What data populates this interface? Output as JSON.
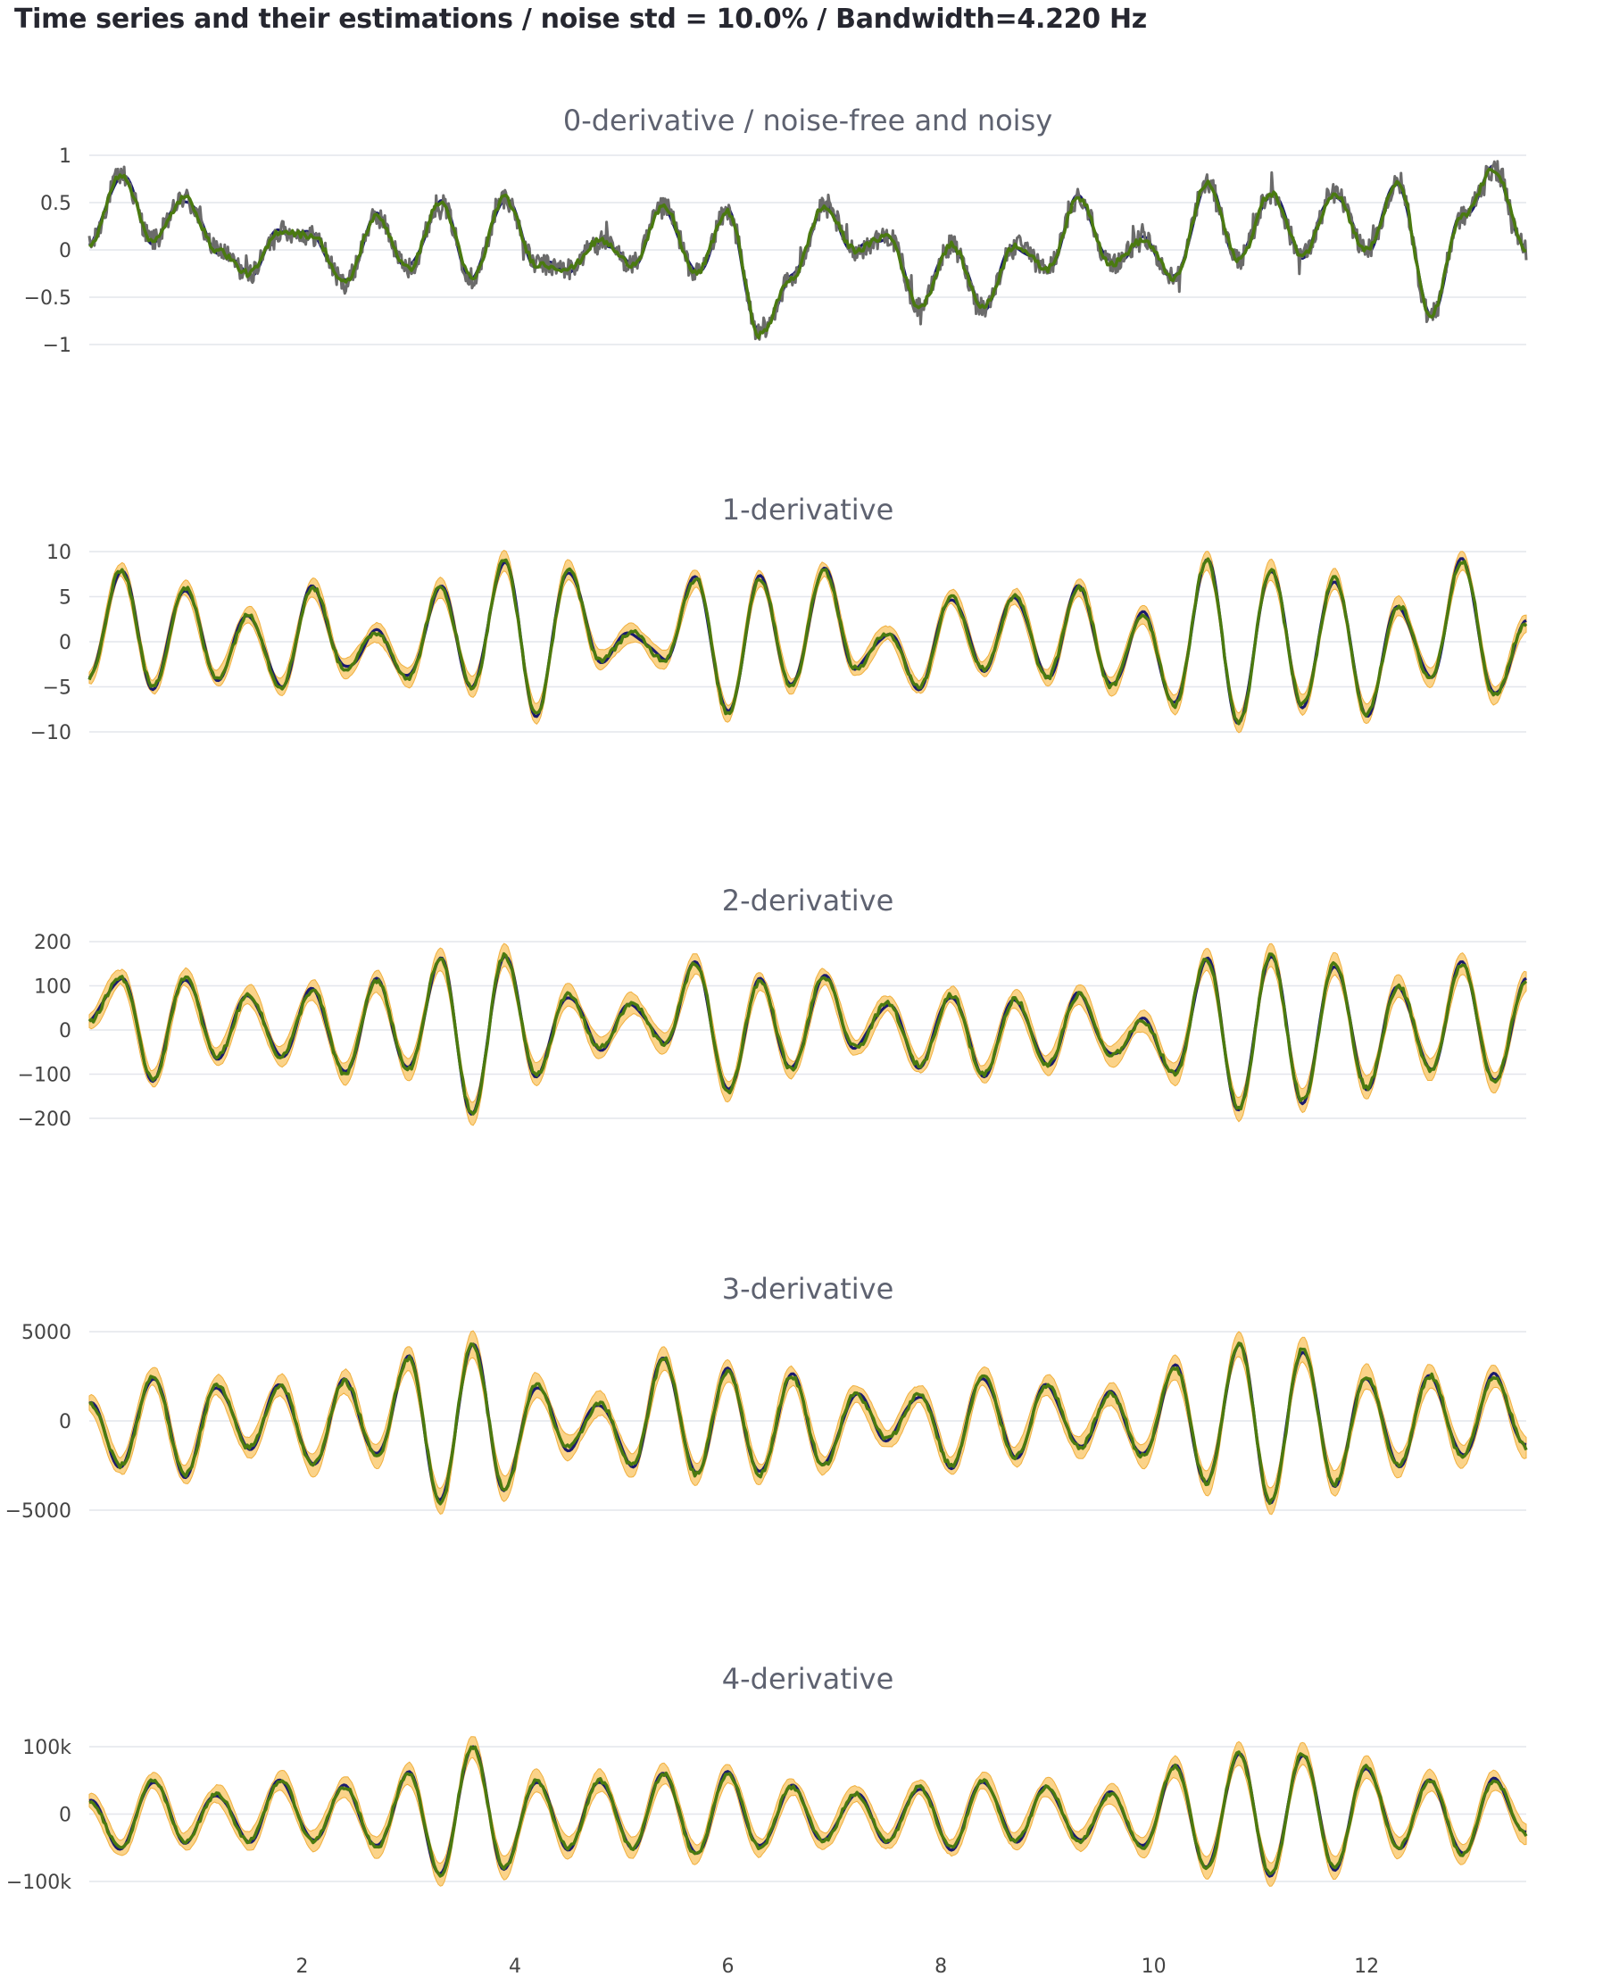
{
  "page_title": "Time series and their estimations / noise std = 10.0% / Bandwidth=4.220 Hz",
  "colors": {
    "noise_free": "#1a1a6e",
    "noisy": "#6b6b6b",
    "estimate": "#4a7a10",
    "confidence_band": "#f9c462"
  },
  "chart_data": [
    {
      "type": "line",
      "title": "0-derivative / noise-free and noisy",
      "xlim": [
        0,
        13.5
      ],
      "ylim": [
        -1,
        1
      ],
      "yticks": [
        1,
        0.5,
        0,
        -0.5,
        -1
      ],
      "ytick_labels": [
        "1",
        "0.5",
        "0",
        "−0.5",
        "−1"
      ],
      "grid": true,
      "series": [
        {
          "role": "noise-free"
        },
        {
          "role": "noisy"
        },
        {
          "role": "estimate"
        }
      ],
      "x": [
        0,
        0.3,
        0.6,
        0.9,
        1.2,
        1.5,
        1.8,
        2.1,
        2.4,
        2.7,
        3.0,
        3.3,
        3.6,
        3.9,
        4.2,
        4.5,
        4.8,
        5.1,
        5.4,
        5.7,
        6.0,
        6.3,
        6.6,
        6.9,
        7.2,
        7.5,
        7.8,
        8.1,
        8.4,
        8.7,
        9.0,
        9.3,
        9.6,
        9.9,
        10.2,
        10.5,
        10.8,
        11.1,
        11.4,
        11.7,
        12.0,
        12.3,
        12.6,
        12.9,
        13.2,
        13.5
      ],
      "values": [
        0.05,
        0.8,
        0.1,
        0.55,
        0.0,
        -0.25,
        0.2,
        0.15,
        -0.35,
        0.35,
        -0.2,
        0.5,
        -0.3,
        0.55,
        -0.15,
        -0.2,
        0.1,
        -0.15,
        0.45,
        -0.25,
        0.4,
        -0.9,
        -0.3,
        0.45,
        0.0,
        0.15,
        -0.6,
        0.05,
        -0.6,
        0.05,
        -0.2,
        0.55,
        -0.15,
        0.1,
        -0.3,
        0.7,
        -0.1,
        0.6,
        -0.05,
        0.6,
        0.0,
        0.7,
        -0.7,
        0.35,
        0.85,
        0.0
      ]
    },
    {
      "type": "line",
      "title": "1-derivative",
      "xlim": [
        0,
        13.5
      ],
      "ylim": [
        -10,
        10
      ],
      "yticks": [
        10,
        5,
        0,
        -5,
        -10
      ],
      "ytick_labels": [
        "10",
        "5",
        "0",
        "−5",
        "−10"
      ],
      "grid": true,
      "series": [
        {
          "role": "noise-free"
        },
        {
          "role": "estimate"
        },
        {
          "role": "confidence band"
        }
      ],
      "x": [
        0,
        0.3,
        0.6,
        0.9,
        1.2,
        1.5,
        1.8,
        2.1,
        2.4,
        2.7,
        3.0,
        3.3,
        3.6,
        3.9,
        4.2,
        4.5,
        4.8,
        5.1,
        5.4,
        5.7,
        6.0,
        6.3,
        6.6,
        6.9,
        7.2,
        7.5,
        7.8,
        8.1,
        8.4,
        8.7,
        9.0,
        9.3,
        9.6,
        9.9,
        10.2,
        10.5,
        10.8,
        11.1,
        11.4,
        11.7,
        12.0,
        12.3,
        12.6,
        12.9,
        13.2,
        13.5
      ],
      "values": [
        -4,
        8,
        -5,
        6,
        -4,
        3,
        -5,
        6,
        -3,
        1,
        -4,
        6,
        -5,
        9,
        -8,
        8,
        -2,
        1,
        -2,
        7,
        -8,
        7,
        -5,
        8,
        -3,
        1,
        -5,
        5,
        -3,
        5,
        -4,
        6,
        -5,
        3,
        -7,
        9,
        -9,
        8,
        -7,
        7,
        -8,
        4,
        -4,
        9,
        -6,
        2
      ]
    },
    {
      "type": "line",
      "title": "2-derivative",
      "xlim": [
        0,
        13.5
      ],
      "ylim": [
        -200,
        200
      ],
      "yticks": [
        200,
        100,
        0,
        -100,
        -200
      ],
      "ytick_labels": [
        "200",
        "100",
        "0",
        "−100",
        "−200"
      ],
      "grid": true,
      "series": [
        {
          "role": "noise-free"
        },
        {
          "role": "estimate"
        },
        {
          "role": "confidence band"
        }
      ],
      "x": [
        0,
        0.3,
        0.6,
        0.9,
        1.2,
        1.5,
        1.8,
        2.1,
        2.4,
        2.7,
        3.0,
        3.3,
        3.6,
        3.9,
        4.2,
        4.5,
        4.8,
        5.1,
        5.4,
        5.7,
        6.0,
        6.3,
        6.6,
        6.9,
        7.2,
        7.5,
        7.8,
        8.1,
        8.4,
        8.7,
        9.0,
        9.3,
        9.6,
        9.9,
        10.2,
        10.5,
        10.8,
        11.1,
        11.4,
        11.7,
        12.0,
        12.3,
        12.6,
        12.9,
        13.2,
        13.5
      ],
      "values": [
        20,
        120,
        -110,
        120,
        -60,
        80,
        -60,
        90,
        -100,
        110,
        -90,
        160,
        -190,
        170,
        -100,
        80,
        -40,
        60,
        -30,
        150,
        -140,
        110,
        -90,
        120,
        -40,
        60,
        -80,
        80,
        -100,
        70,
        -80,
        80,
        -60,
        20,
        -100,
        160,
        -180,
        170,
        -160,
        150,
        -130,
        100,
        -90,
        150,
        -120,
        110
      ]
    },
    {
      "type": "line",
      "title": "3-derivative",
      "xlim": [
        0,
        13.5
      ],
      "ylim": [
        -5000,
        5000
      ],
      "yticks": [
        5000,
        0,
        -5000
      ],
      "ytick_labels": [
        "5000",
        "0",
        "−5000"
      ],
      "grid": true,
      "series": [
        {
          "role": "noise-free"
        },
        {
          "role": "estimate"
        },
        {
          "role": "confidence band"
        }
      ],
      "x": [
        0,
        0.3,
        0.6,
        0.9,
        1.2,
        1.5,
        1.8,
        2.1,
        2.4,
        2.7,
        3.0,
        3.3,
        3.6,
        3.9,
        4.2,
        4.5,
        4.8,
        5.1,
        5.4,
        5.7,
        6.0,
        6.3,
        6.6,
        6.9,
        7.2,
        7.5,
        7.8,
        8.1,
        8.4,
        8.7,
        9.0,
        9.3,
        9.6,
        9.9,
        10.2,
        10.5,
        10.8,
        11.1,
        11.4,
        11.7,
        12.0,
        12.3,
        12.6,
        12.9,
        13.2,
        13.5
      ],
      "values": [
        1000,
        -2500,
        2500,
        -3000,
        2000,
        -1500,
        2000,
        -2500,
        2200,
        -2000,
        3500,
        -4500,
        4300,
        -3800,
        2000,
        -1500,
        1000,
        -2500,
        3500,
        -3000,
        2800,
        -3000,
        2500,
        -2500,
        1500,
        -1000,
        1500,
        -2500,
        2500,
        -2000,
        2000,
        -1500,
        1500,
        -2000,
        3000,
        -3500,
        4300,
        -4500,
        4000,
        -3500,
        2500,
        -2500,
        2500,
        -2000,
        2500,
        -1500
      ]
    },
    {
      "type": "line",
      "title": "4-derivative",
      "xlim": [
        0,
        13.5
      ],
      "ylim": [
        -100000,
        100000
      ],
      "yticks": [
        100000,
        0,
        -100000
      ],
      "ytick_labels": [
        "100k",
        "0",
        "−100k"
      ],
      "xticks": [
        2,
        4,
        6,
        8,
        10,
        12
      ],
      "xtick_labels": [
        "2",
        "4",
        "6",
        "8",
        "10",
        "12"
      ],
      "grid": true,
      "series": [
        {
          "role": "noise-free"
        },
        {
          "role": "estimate"
        },
        {
          "role": "confidence band"
        }
      ],
      "x": [
        0,
        0.3,
        0.6,
        0.9,
        1.2,
        1.5,
        1.8,
        2.1,
        2.4,
        2.7,
        3.0,
        3.3,
        3.6,
        3.9,
        4.2,
        4.5,
        4.8,
        5.1,
        5.4,
        5.7,
        6.0,
        6.3,
        6.6,
        6.9,
        7.2,
        7.5,
        7.8,
        8.1,
        8.4,
        8.7,
        9.0,
        9.3,
        9.6,
        9.9,
        10.2,
        10.5,
        10.8,
        11.1,
        11.4,
        11.7,
        12.0,
        12.3,
        12.6,
        12.9,
        13.2,
        13.5
      ],
      "values": [
        20000,
        -50000,
        50000,
        -40000,
        30000,
        -40000,
        50000,
        -40000,
        40000,
        -50000,
        60000,
        -90000,
        100000,
        -80000,
        50000,
        -50000,
        50000,
        -50000,
        60000,
        -60000,
        60000,
        -50000,
        40000,
        -40000,
        30000,
        -40000,
        40000,
        -50000,
        50000,
        -40000,
        40000,
        -40000,
        30000,
        -50000,
        70000,
        -80000,
        90000,
        -90000,
        90000,
        -80000,
        70000,
        -50000,
        50000,
        -60000,
        50000,
        -30000
      ]
    }
  ]
}
